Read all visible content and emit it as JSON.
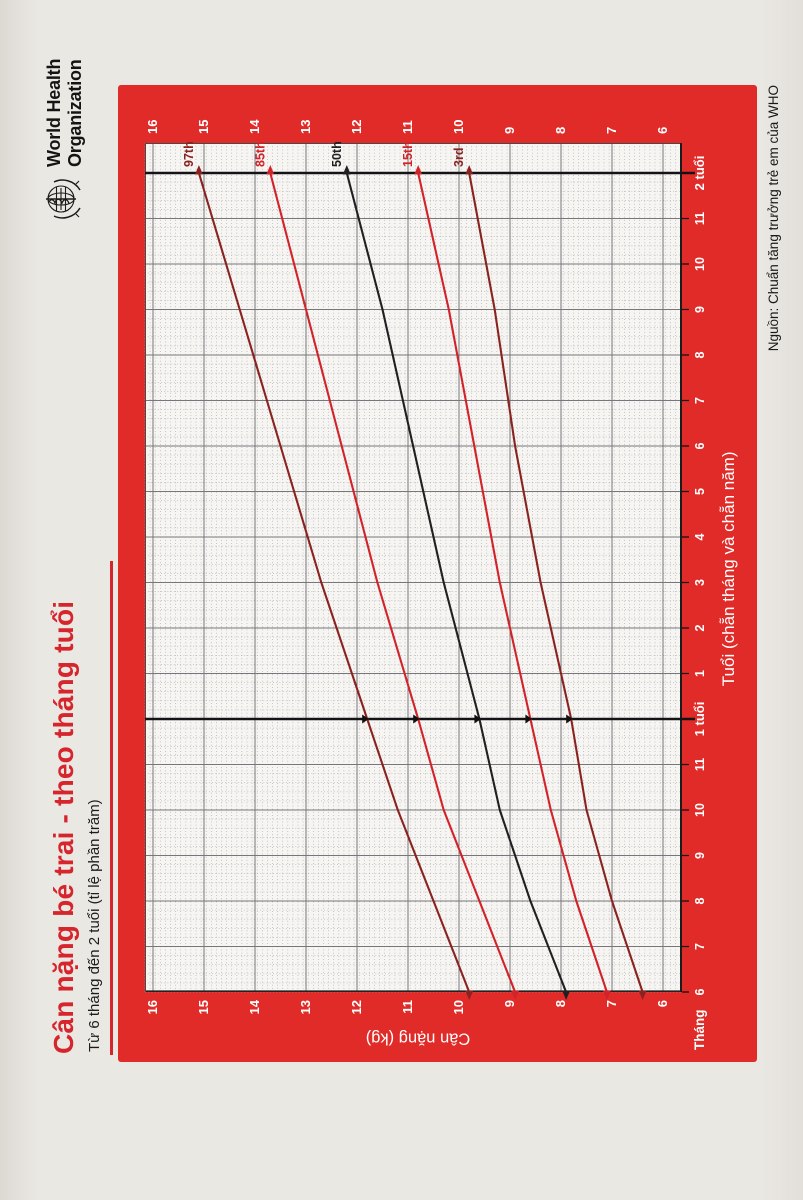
{
  "logo": {
    "line1": "World Health",
    "line2": "Organization"
  },
  "header": {
    "title": "Cân nặng bé trai - theo tháng tuổi",
    "subtitle": "Từ 6 tháng đến 2 tuổi (tỉ lệ phần trăm)"
  },
  "source": "Nguồn: Chuẩn tăng trưởng trẻ em của WHO",
  "colors": {
    "red": "#e02b28",
    "title_red": "#d6252c",
    "paper": "#f6f5f2",
    "grid_minor": "#a2a5b2",
    "grid_major": "#76767c",
    "grid_heavy": "#141416",
    "curve_outer": "#8a2320",
    "curve_mid": "#d2232a",
    "curve_median": "#231f20"
  },
  "chart_data": {
    "type": "line",
    "title": "Cân nặng bé trai - theo tháng tuổi",
    "subtitle": "Từ 6 tháng đến 2 tuổi (tỉ lệ phần trăm)",
    "xlabel": "Tuổi (chẵn tháng và chẵn năm)",
    "ylabel": "Cân nặng (kg)",
    "x_unit_label": "Tháng",
    "xlim": [
      6,
      24
    ],
    "ylim": [
      6,
      16
    ],
    "grid": "fine graph paper, majors at 1 month and 1 kg",
    "x_ticks": [
      6,
      7,
      8,
      9,
      10,
      11,
      12,
      13,
      14,
      15,
      16,
      17,
      18,
      19,
      20,
      21,
      22,
      23,
      24
    ],
    "x_tick_labels": [
      "6",
      "7",
      "8",
      "9",
      "10",
      "11",
      "1 tuổi",
      "1",
      "2",
      "3",
      "4",
      "5",
      "6",
      "7",
      "8",
      "9",
      "10",
      "11",
      "2 tuổi"
    ],
    "y_ticks": [
      16,
      15,
      14,
      13,
      12,
      11,
      10,
      9,
      8,
      7,
      6
    ],
    "marker_month": 12,
    "x": [
      6,
      8,
      10,
      12,
      15,
      18,
      21,
      24
    ],
    "series": [
      {
        "name": "97th",
        "color_key": "curve_outer",
        "values": [
          9.8,
          10.5,
          11.2,
          11.8,
          12.7,
          13.5,
          14.3,
          15.1
        ]
      },
      {
        "name": "85th",
        "color_key": "curve_mid",
        "values": [
          8.9,
          9.6,
          10.3,
          10.8,
          11.6,
          12.3,
          13.0,
          13.7
        ]
      },
      {
        "name": "50th",
        "color_key": "curve_median",
        "values": [
          7.9,
          8.6,
          9.2,
          9.6,
          10.3,
          10.9,
          11.5,
          12.2
        ]
      },
      {
        "name": "15th",
        "color_key": "curve_mid",
        "values": [
          7.1,
          7.7,
          8.2,
          8.6,
          9.2,
          9.7,
          10.2,
          10.8
        ]
      },
      {
        "name": "3rd",
        "color_key": "curve_outer",
        "values": [
          6.4,
          7.0,
          7.5,
          7.8,
          8.4,
          8.9,
          9.3,
          9.8
        ]
      }
    ],
    "legend_position": "labels at right end of curves"
  }
}
